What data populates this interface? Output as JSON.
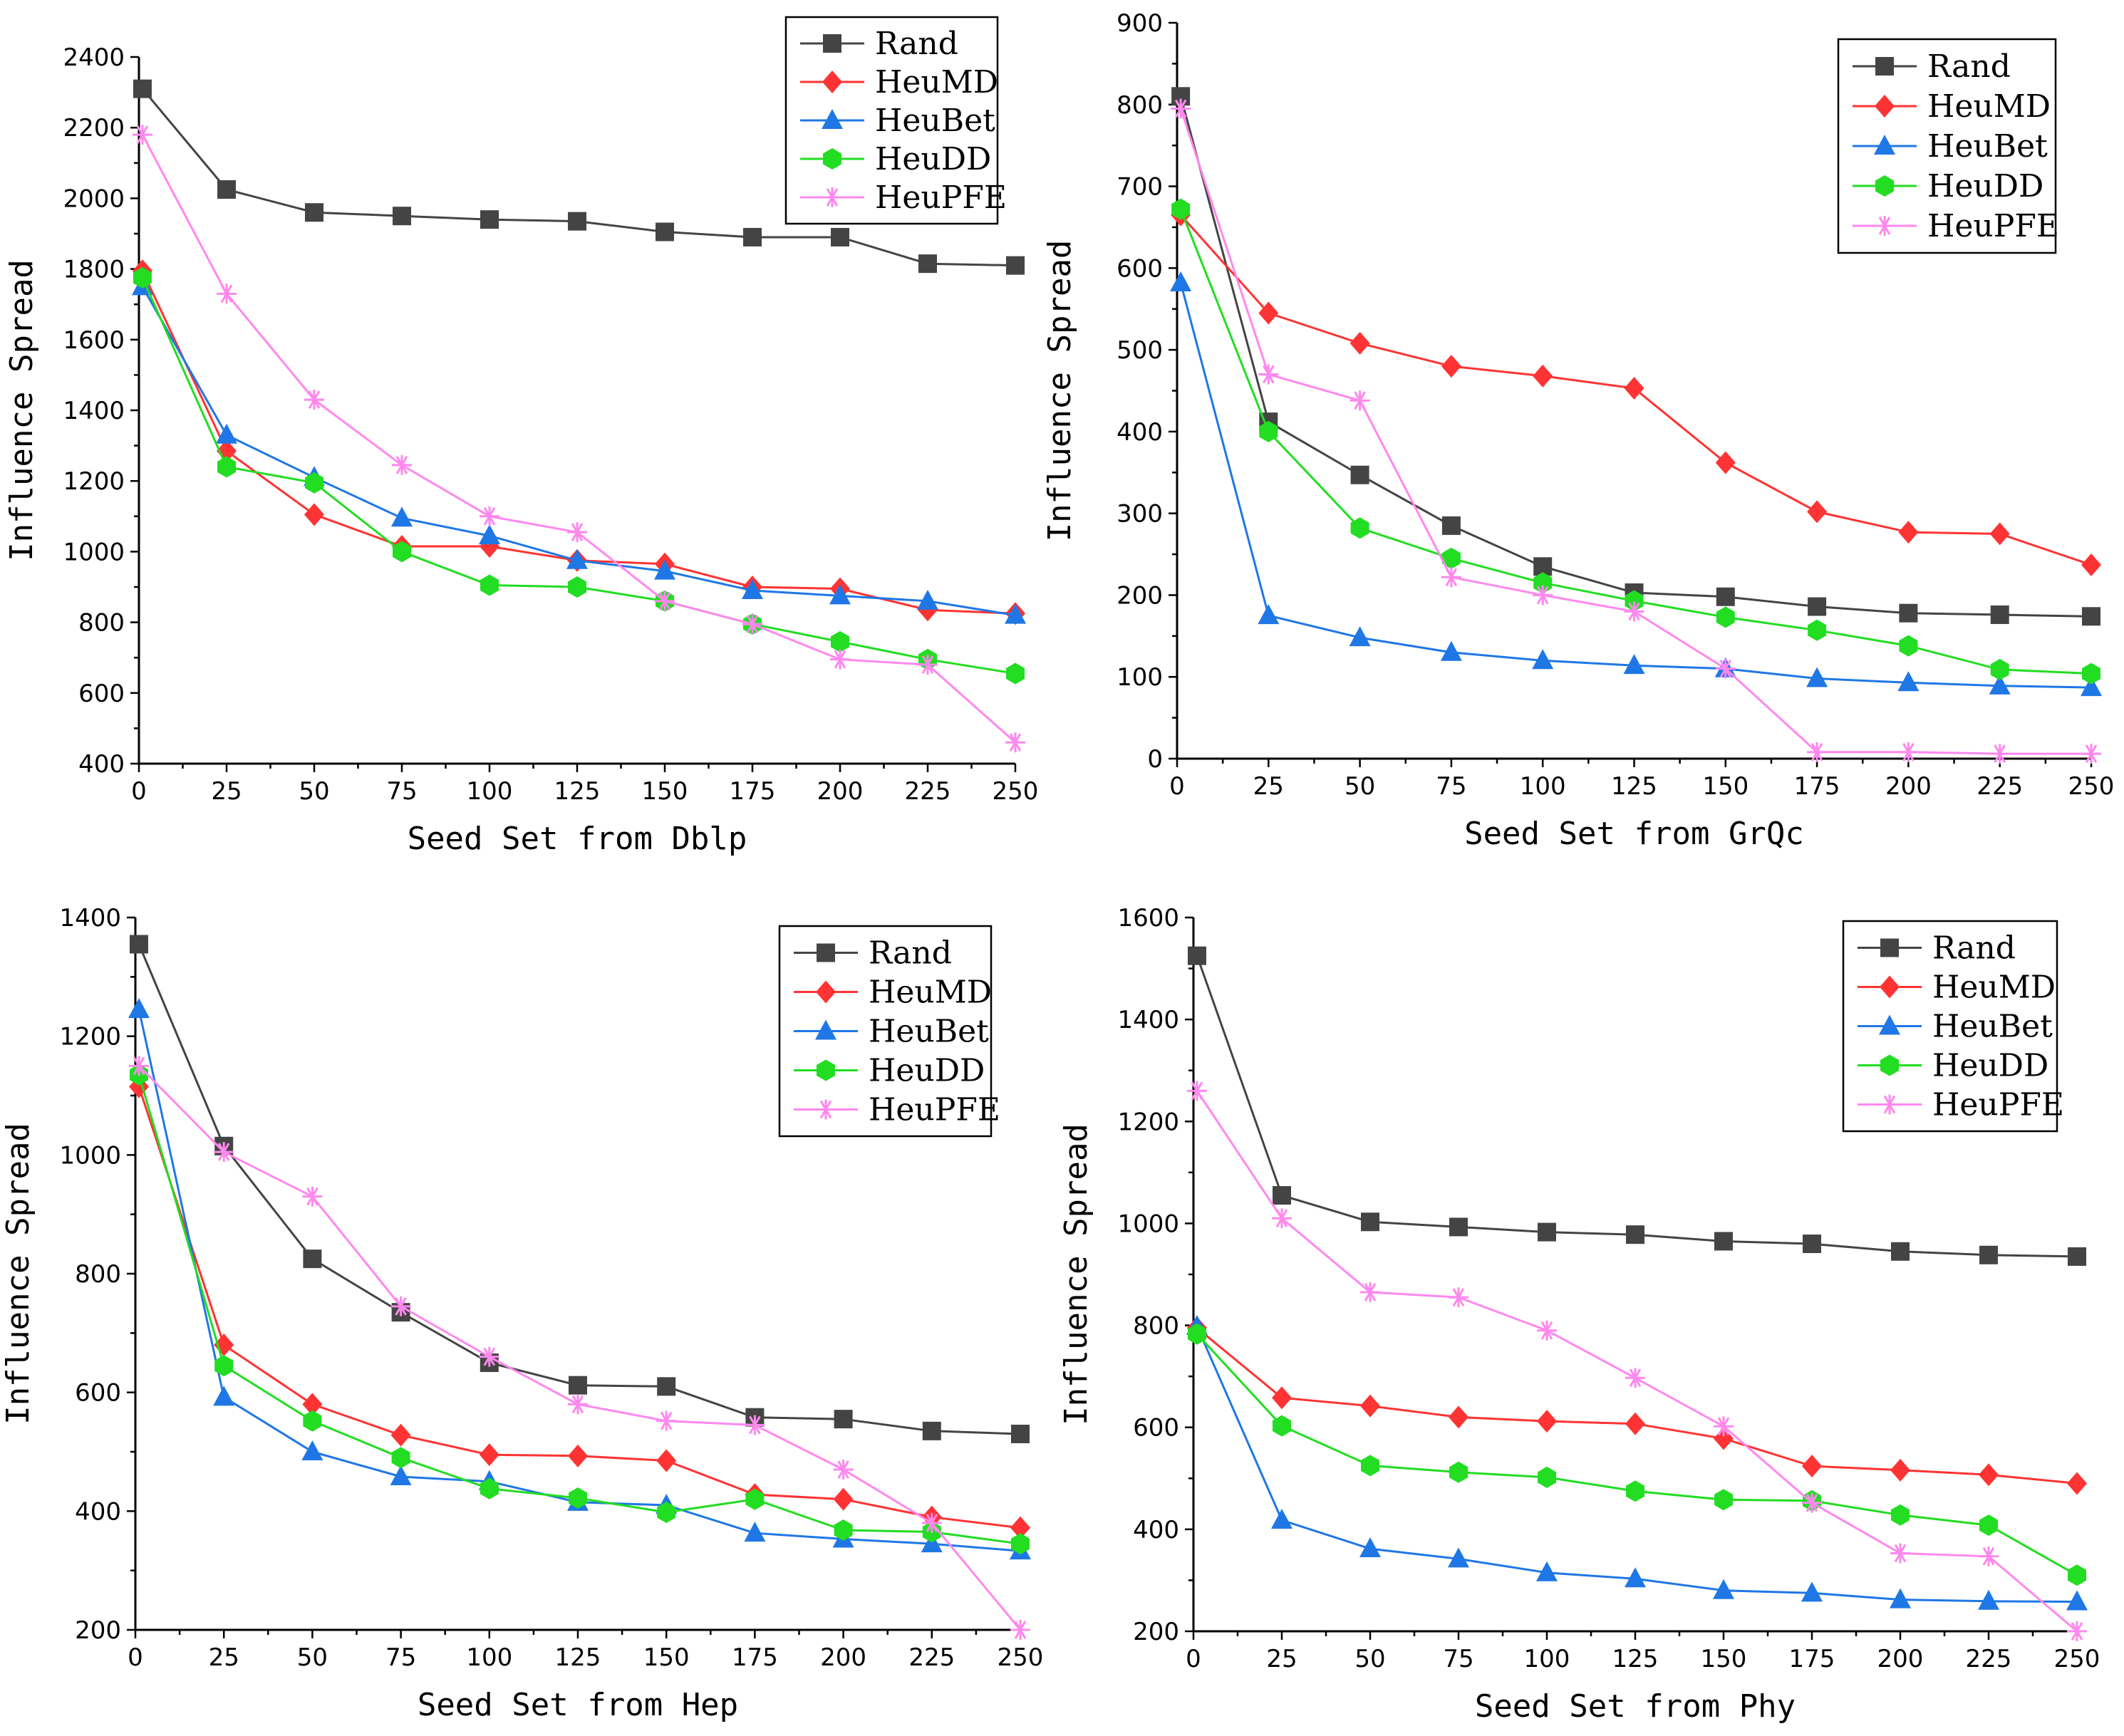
{
  "colors": {
    "Rand": "#444444",
    "HeuMD": "#ff3333",
    "HeuBet": "#1f77e6",
    "HeuDD": "#22dd22",
    "HeuPFE": "#ff88ee"
  },
  "markers": {
    "Rand": "square",
    "HeuMD": "diamond",
    "HeuBet": "triangle",
    "HeuDD": "hexagon",
    "HeuPFE": "star"
  },
  "chart_data": [
    {
      "type": "line",
      "title": "",
      "xlabel": "Seed Set from Dblp",
      "ylabel": "Influence Spread",
      "x": [
        1,
        25,
        50,
        75,
        100,
        125,
        150,
        175,
        200,
        225,
        250
      ],
      "xticks": [
        0,
        25,
        50,
        75,
        100,
        125,
        150,
        175,
        200,
        225,
        250
      ],
      "yticks": [
        400,
        600,
        800,
        1000,
        1200,
        1400,
        1600,
        1800,
        2000,
        2200,
        2400
      ],
      "xlim": [
        0,
        250
      ],
      "ylim": [
        400,
        2400
      ],
      "legend_position": "top-right",
      "series": [
        {
          "name": "Rand",
          "values": [
            2310,
            2025,
            1960,
            1950,
            1940,
            1935,
            1905,
            1890,
            1890,
            1815,
            1810
          ]
        },
        {
          "name": "HeuMD",
          "values": [
            1795,
            1285,
            1105,
            1015,
            1015,
            975,
            965,
            900,
            895,
            835,
            825
          ]
        },
        {
          "name": "HeuBet",
          "values": [
            1750,
            1330,
            1210,
            1095,
            1045,
            975,
            945,
            890,
            875,
            860,
            820
          ]
        },
        {
          "name": "HeuDD",
          "values": [
            1775,
            1240,
            1195,
            1000,
            905,
            900,
            860,
            795,
            745,
            695,
            655
          ]
        },
        {
          "name": "HeuPFE",
          "values": [
            2180,
            1730,
            1430,
            1245,
            1100,
            1055,
            860,
            795,
            695,
            680,
            460
          ]
        }
      ]
    },
    {
      "type": "line",
      "title": "",
      "xlabel": "Seed Set from GrQc",
      "ylabel": "Influence Spread",
      "x": [
        1,
        25,
        50,
        75,
        100,
        125,
        150,
        175,
        200,
        225,
        250
      ],
      "xticks": [
        0,
        25,
        50,
        75,
        100,
        125,
        150,
        175,
        200,
        225,
        250
      ],
      "yticks": [
        0,
        100,
        200,
        300,
        400,
        500,
        600,
        700,
        800,
        900
      ],
      "xlim": [
        0,
        250
      ],
      "ylim": [
        0,
        900
      ],
      "legend_position": "top-right",
      "series": [
        {
          "name": "Rand",
          "values": [
            810,
            412,
            347,
            285,
            235,
            203,
            198,
            186,
            178,
            176,
            174
          ]
        },
        {
          "name": "HeuMD",
          "values": [
            665,
            545,
            508,
            480,
            468,
            453,
            362,
            302,
            277,
            275,
            237
          ]
        },
        {
          "name": "HeuBet",
          "values": [
            582,
            175,
            148,
            130,
            120,
            114,
            110,
            98,
            93,
            89,
            87
          ]
        },
        {
          "name": "HeuDD",
          "values": [
            672,
            400,
            282,
            245,
            215,
            193,
            173,
            157,
            138,
            109,
            104
          ]
        },
        {
          "name": "HeuPFE",
          "values": [
            795,
            470,
            438,
            222,
            200,
            180,
            110,
            8,
            8,
            6,
            6
          ]
        }
      ]
    },
    {
      "type": "line",
      "title": "",
      "xlabel": "Seed Set from Hep",
      "ylabel": "Influence Spread",
      "x": [
        1,
        25,
        50,
        75,
        100,
        125,
        150,
        175,
        200,
        225,
        250
      ],
      "xticks": [
        0,
        25,
        50,
        75,
        100,
        125,
        150,
        175,
        200,
        225,
        250
      ],
      "yticks": [
        200,
        400,
        600,
        800,
        1000,
        1200,
        1400
      ],
      "xlim": [
        0,
        250
      ],
      "ylim": [
        200,
        1400
      ],
      "legend_position": "top-right",
      "series": [
        {
          "name": "Rand",
          "values": [
            1355,
            1015,
            825,
            735,
            650,
            612,
            610,
            558,
            555,
            535,
            530
          ]
        },
        {
          "name": "HeuMD",
          "values": [
            1115,
            680,
            580,
            528,
            495,
            493,
            485,
            428,
            420,
            390,
            372
          ]
        },
        {
          "name": "HeuBet",
          "values": [
            1245,
            592,
            500,
            458,
            450,
            415,
            410,
            363,
            353,
            345,
            333
          ]
        },
        {
          "name": "HeuDD",
          "values": [
            1135,
            645,
            552,
            490,
            438,
            422,
            398,
            420,
            368,
            365,
            345
          ]
        },
        {
          "name": "HeuPFE",
          "values": [
            1150,
            1005,
            930,
            745,
            660,
            580,
            552,
            545,
            470,
            380,
            200
          ]
        }
      ]
    },
    {
      "type": "line",
      "title": "",
      "xlabel": "Seed Set from Phy",
      "ylabel": "Influence Spread",
      "x": [
        1,
        25,
        50,
        75,
        100,
        125,
        150,
        175,
        200,
        225,
        250
      ],
      "xticks": [
        0,
        25,
        50,
        75,
        100,
        125,
        150,
        175,
        200,
        225,
        250
      ],
      "yticks": [
        200,
        400,
        600,
        800,
        1000,
        1200,
        1400,
        1600
      ],
      "xlim": [
        0,
        250
      ],
      "ylim": [
        200,
        1600
      ],
      "legend_position": "top-right",
      "series": [
        {
          "name": "Rand",
          "values": [
            1525,
            1055,
            1003,
            993,
            983,
            978,
            965,
            960,
            945,
            938,
            935
          ]
        },
        {
          "name": "HeuMD",
          "values": [
            795,
            658,
            642,
            620,
            612,
            607,
            578,
            524,
            516,
            507,
            490
          ]
        },
        {
          "name": "HeuBet",
          "values": [
            798,
            418,
            362,
            342,
            315,
            303,
            280,
            275,
            262,
            259,
            258
          ]
        },
        {
          "name": "HeuDD",
          "values": [
            783,
            603,
            525,
            512,
            502,
            475,
            458,
            456,
            428,
            408,
            310
          ]
        },
        {
          "name": "HeuPFE",
          "values": [
            1260,
            1010,
            865,
            855,
            790,
            697,
            602,
            452,
            353,
            347,
            200
          ]
        }
      ]
    }
  ]
}
